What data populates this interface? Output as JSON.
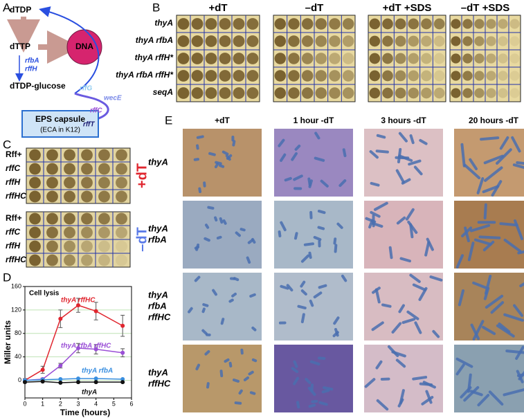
{
  "panel_labels": [
    "A",
    "B",
    "C",
    "D",
    "E"
  ],
  "panel_a": {
    "dtdp": "dTDP",
    "dttp": "dTTP",
    "dna": "DNA",
    "rfba": "rfbA",
    "rffh": "rffH",
    "dtdp_glucose": "dTDP-glucose",
    "rffg": "rffG",
    "wece": "wecE",
    "rffc": "rffC",
    "rfft": "rffT",
    "eps": "EPS capsule",
    "eca": "(ECA in K12)"
  },
  "panel_b": {
    "columns": [
      "+dT",
      "–dT",
      "+dT +SDS",
      "–dT +SDS"
    ],
    "rows": [
      "thyA",
      "thyA rfbA",
      "thyA rffH*",
      "thyA rfbA rffH*",
      "seqA"
    ]
  },
  "panel_c": {
    "rows": [
      "Rff+",
      "rffC",
      "rffH",
      "rffHC"
    ],
    "conditions": [
      "+dT",
      "–dT"
    ]
  },
  "chart_data": {
    "type": "line",
    "title": "Cell lysis",
    "x_label": "Time (hours)",
    "y_label": "Miller units",
    "x": [
      0,
      1,
      2,
      3,
      4,
      5.5
    ],
    "xlim": [
      0,
      6
    ],
    "xticks": [
      0,
      1,
      2,
      3,
      4,
      5,
      6
    ],
    "ylim": [
      -30,
      160
    ],
    "yticks": [
      0,
      40,
      80,
      120,
      160
    ],
    "grid": true,
    "grid_color": "#bfe3b4",
    "series": [
      {
        "name": "thyA rffHC",
        "color": "#e0262f",
        "values": [
          0,
          18,
          105,
          128,
          118,
          93
        ],
        "errors": [
          3,
          6,
          15,
          12,
          15,
          18
        ]
      },
      {
        "name": "thyA rfbA rffHC",
        "color": "#9a4fd6",
        "values": [
          0,
          2,
          25,
          55,
          53,
          47
        ],
        "errors": [
          1,
          2,
          4,
          8,
          8,
          7
        ]
      },
      {
        "name": "thyA rfbA",
        "color": "#3a8fe0",
        "values": [
          0,
          1,
          2,
          3,
          3,
          2
        ]
      },
      {
        "name": "thyA",
        "color": "#111111",
        "values": [
          -3,
          -2,
          -4,
          -3,
          -3,
          -3
        ]
      }
    ]
  },
  "panel_e": {
    "columns": [
      "+dT",
      "1 hour -dT",
      "3 hours -dT",
      "20 hours -dT"
    ],
    "rows": [
      [
        "thyA"
      ],
      [
        "thyA",
        "rfbA"
      ],
      [
        "thyA",
        "rfbA",
        "rffHC"
      ],
      [
        "thyA",
        "rffHC"
      ]
    ]
  }
}
